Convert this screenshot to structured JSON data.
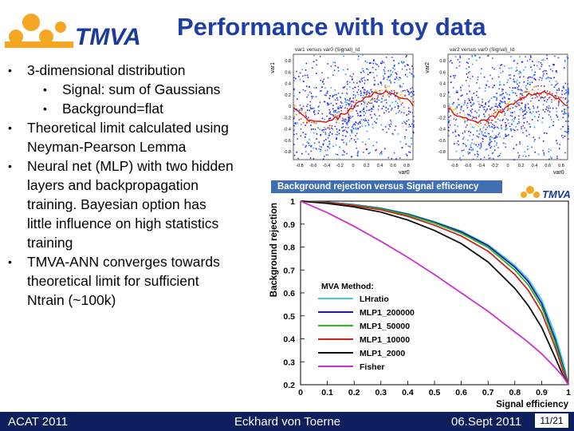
{
  "logo": {
    "text": "TMVA"
  },
  "title": "Performance with toy data",
  "bullets": [
    {
      "level": 1,
      "text": "3-dimensional distribution"
    },
    {
      "level": 2,
      "text": "Signal: sum of Gaussians"
    },
    {
      "level": 2,
      "text": "Background=flat"
    },
    {
      "level": 1,
      "lines": [
        "Theoretical limit calculated using",
        "Neyman-Pearson Lemma"
      ]
    },
    {
      "level": 1,
      "lines": [
        "Neural net (MLP) with two hidden",
        "layers and backpropagation",
        "training. Bayesian option has",
        "little influence on high statistics",
        "training"
      ]
    },
    {
      "level": 1,
      "lines": [
        "TMVA-ANN converges towards",
        "theoretical limit for sufficient",
        "Ntrain (~100k)"
      ]
    }
  ],
  "scatter_left": {
    "title": "var1 versus var0 (Signal)_Id",
    "xlabel": "var0",
    "ylabel": "var1"
  },
  "scatter_right": {
    "title": "var2 versus var0 (Signal)_Id",
    "xlabel": "var0",
    "ylabel": "var2"
  },
  "scatter_ticks": {
    "x": [
      "-0.8",
      "-0.6",
      "-0.4",
      "-0.2",
      "0",
      "0.2",
      "0.4",
      "0.6",
      "0.8"
    ],
    "y": [
      "0.8",
      "0.6",
      "0.4",
      "0.2",
      "0",
      "-0.2",
      "-0.4",
      "-0.6",
      "-0.8"
    ]
  },
  "chart_data": {
    "type": "line",
    "title": "Background rejection versus Signal efficiency",
    "xlabel": "Signal efficiency",
    "ylabel": "Background rejection",
    "xlim": [
      0,
      1
    ],
    "ylim": [
      0.2,
      1.0
    ],
    "xticks": [
      "0",
      "0.1",
      "0.2",
      "0.3",
      "0.4",
      "0.5",
      "0.6",
      "0.7",
      "0.8",
      "0.9",
      "1"
    ],
    "yticks": [
      "0.2",
      "0.3",
      "0.4",
      "0.5",
      "0.6",
      "0.7",
      "0.8",
      "0.9",
      "1"
    ],
    "legend_title": "MVA Method:",
    "legend_position": "bottom-left",
    "x": [
      0,
      0.1,
      0.2,
      0.3,
      0.4,
      0.5,
      0.6,
      0.7,
      0.8,
      0.85,
      0.9,
      0.95,
      0.98,
      1.0
    ],
    "series": [
      {
        "name": "LHratio",
        "color": "#44ccee",
        "values": [
          1.0,
          0.995,
          0.985,
          0.97,
          0.945,
          0.91,
          0.87,
          0.81,
          0.72,
          0.66,
          0.57,
          0.42,
          0.3,
          0.2
        ]
      },
      {
        "name": "MLP1_200000",
        "color": "#1a1a9e",
        "values": [
          1.0,
          0.995,
          0.984,
          0.968,
          0.943,
          0.908,
          0.866,
          0.806,
          0.712,
          0.65,
          0.555,
          0.4,
          0.28,
          0.2
        ]
      },
      {
        "name": "MLP1_50000",
        "color": "#22bb22",
        "values": [
          1.0,
          0.994,
          0.983,
          0.966,
          0.94,
          0.904,
          0.86,
          0.798,
          0.7,
          0.635,
          0.54,
          0.385,
          0.27,
          0.2
        ]
      },
      {
        "name": "MLP1_10000",
        "color": "#cc2222",
        "values": [
          1.0,
          0.993,
          0.981,
          0.962,
          0.934,
          0.895,
          0.848,
          0.782,
          0.68,
          0.612,
          0.515,
          0.365,
          0.26,
          0.2
        ]
      },
      {
        "name": "MLP1_2000",
        "color": "#111111",
        "values": [
          1.0,
          0.99,
          0.975,
          0.952,
          0.918,
          0.872,
          0.815,
          0.735,
          0.62,
          0.545,
          0.45,
          0.32,
          0.24,
          0.2
        ]
      },
      {
        "name": "Fisher",
        "color": "#cc33cc",
        "values": [
          1.0,
          0.95,
          0.89,
          0.825,
          0.755,
          0.68,
          0.6,
          0.52,
          0.43,
          0.385,
          0.335,
          0.275,
          0.235,
          0.2
        ]
      }
    ]
  },
  "footer": {
    "left": "ACAT 2011",
    "center": "Eckhard von Toerne",
    "right": "06.Sept 2011",
    "page": "11/21"
  }
}
